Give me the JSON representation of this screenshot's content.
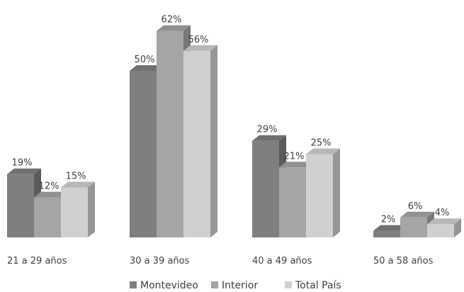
{
  "chart_data": {
    "type": "bar",
    "style": "3d-clustered-column",
    "title": "",
    "xlabel": "",
    "ylabel": "",
    "ylim": [
      0,
      70
    ],
    "grid": false,
    "legend_position": "bottom",
    "categories": [
      "21 a 29 años",
      "30 a 39 años",
      "40 a 49 años",
      "50 a 58 años"
    ],
    "series": [
      {
        "name": "Montevideo",
        "color": "#7f7f7f",
        "values": [
          19,
          50,
          29,
          2
        ],
        "labels": [
          "19%",
          "50%",
          "29%",
          "2%"
        ]
      },
      {
        "name": "Interior",
        "color": "#a5a5a5",
        "values": [
          12,
          62,
          21,
          6
        ],
        "labels": [
          "12%",
          "62%",
          "21%",
          "6%"
        ]
      },
      {
        "name": "Total País",
        "color": "#d0d0d0",
        "values": [
          15,
          56,
          25,
          4
        ],
        "labels": [
          "15%",
          "56%",
          "25%",
          "4%"
        ]
      }
    ]
  }
}
